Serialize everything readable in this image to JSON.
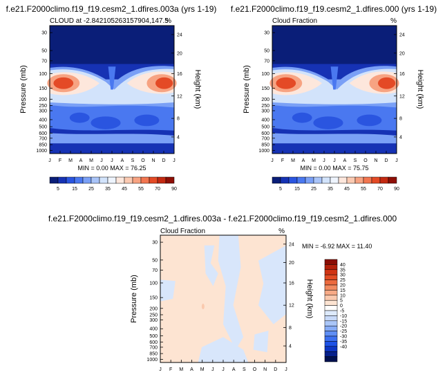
{
  "panels": [
    {
      "title": "f.e21.F2000climo.f19_f19.cesm2_1.dfires.003a (yrs 1-19)",
      "left_label": "CLOUD at -2.842105263157904,147.5",
      "right_label": "%",
      "stats": "MIN =   0.00 MAX =  76.25"
    },
    {
      "title": "f.e21.F2000climo.f19_f19.cesm2_1.dfires.000 (yrs 1-19)",
      "left_label": "Cloud Fraction",
      "right_label": "%",
      "stats": "MIN =   0.00 MAX =  75.75"
    },
    {
      "title": "f.e21.F2000climo.f19_f19.cesm2_1.dfires.003a - f.e21.F2000climo.f19_f19.cesm2_1.dfires.000",
      "left_label": "Cloud Fraction",
      "right_label": "%",
      "stats": "MIN =  -6.92 MAX =  11.40"
    }
  ],
  "colors": {
    "abs_scale": [
      "#0a1e78",
      "#1632b4",
      "#2a55e0",
      "#4a78f0",
      "#7aa0f6",
      "#a9c4f8",
      "#d2e3fb",
      "#eef4fd",
      "#fde7dc",
      "#fbcab2",
      "#f7a382",
      "#f27650",
      "#e44a26",
      "#c42a12",
      "#8e0f06"
    ],
    "diff_scale": [
      "#00104f",
      "#06208c",
      "#0d36c4",
      "#1e52e6",
      "#3c70f0",
      "#5f8ef4",
      "#87acf6",
      "#aac6f8",
      "#c8dafa",
      "#ddeafc",
      "#ffffff",
      "#fde4d2",
      "#fac9ae",
      "#f7aa86",
      "#f28a60",
      "#ec6a3e",
      "#e24c24",
      "#d03414",
      "#b4200a",
      "#8a0d04"
    ]
  },
  "chart_data": [
    {
      "type": "heatmap",
      "title": "f.e21.F2000climo.f19_f19.cesm2_1.dfires.003a (yrs 1-19)",
      "ylabel": "Pressure (mb)",
      "ylabel_right": "Height (km)",
      "x": [
        "J",
        "F",
        "M",
        "A",
        "M",
        "J",
        "J",
        "A",
        "S",
        "O",
        "N",
        "D",
        "J"
      ],
      "yticks": [
        "30",
        "50",
        "70",
        "100",
        "150",
        "200",
        "250",
        "300",
        "400",
        "500",
        "600",
        "700",
        "850",
        "1000"
      ],
      "yticks_right": [
        "24",
        "20",
        "16",
        "12",
        "8",
        "4"
      ],
      "colorbar_ticks": [
        "5",
        "15",
        "25",
        "35",
        "45",
        "55",
        "70",
        "90"
      ],
      "min": 0.0,
      "max": 76.25
    },
    {
      "type": "heatmap",
      "title": "f.e21.F2000climo.f19_f19.cesm2_1.dfires.000 (yrs 1-19)",
      "ylabel": "Pressure (mb)",
      "ylabel_right": "Height (km)",
      "x": [
        "J",
        "F",
        "M",
        "A",
        "M",
        "J",
        "J",
        "A",
        "S",
        "O",
        "N",
        "D",
        "J"
      ],
      "yticks": [
        "30",
        "50",
        "70",
        "100",
        "150",
        "200",
        "250",
        "300",
        "400",
        "500",
        "600",
        "700",
        "850",
        "1000"
      ],
      "yticks_right": [
        "24",
        "20",
        "16",
        "12",
        "8",
        "4"
      ],
      "colorbar_ticks": [
        "5",
        "15",
        "25",
        "35",
        "45",
        "55",
        "70",
        "90"
      ],
      "min": 0.0,
      "max": 75.75
    },
    {
      "type": "heatmap",
      "title": "f.e21.F2000climo.f19_f19.cesm2_1.dfires.003a - f.e21.F2000climo.f19_f19.cesm2_1.dfires.000",
      "ylabel": "Pressure (mb)",
      "ylabel_right": "Height (km)",
      "x": [
        "J",
        "F",
        "M",
        "A",
        "M",
        "J",
        "J",
        "A",
        "S",
        "O",
        "N",
        "D",
        "J"
      ],
      "yticks": [
        "30",
        "50",
        "70",
        "100",
        "150",
        "200",
        "250",
        "300",
        "400",
        "500",
        "600",
        "700",
        "850",
        "1000"
      ],
      "yticks_right": [
        "24",
        "20",
        "16",
        "12",
        "8",
        "4"
      ],
      "colorbar_ticks": [
        "40",
        "35",
        "30",
        "25",
        "20",
        "15",
        "10",
        "5",
        "0",
        "-5",
        "-10",
        "-15",
        "-20",
        "-25",
        "-30",
        "-35",
        "-40"
      ],
      "min": -6.92,
      "max": 11.4
    }
  ]
}
